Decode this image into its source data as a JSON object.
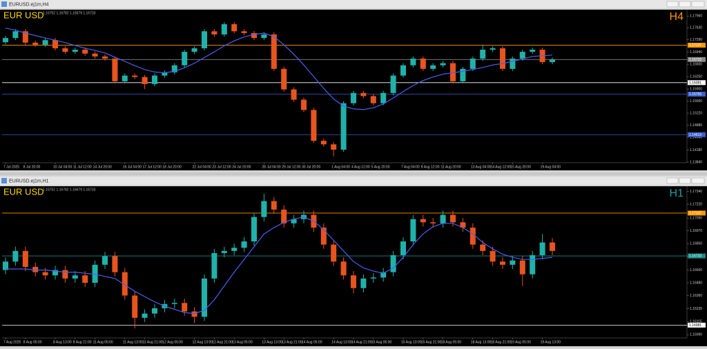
{
  "windows": [
    {
      "title": "EURUSD.ej1m,H4"
    },
    {
      "title": "EURUSD.ej1m,H1"
    }
  ],
  "chart_data": [
    {
      "type": "candlestick",
      "symbol": "EUR USD",
      "timeframe": "H4",
      "ohlc_header": "1.16752 1.16782 1.16679 1.16733",
      "up_color": "#20b2aa",
      "down_color": "#e8541e",
      "timeframe_color": "#ff9900",
      "categories": [
        "7 Jul 2025",
        null,
        "8 Jul 20:00",
        null,
        null,
        "10 Jul 04:00",
        null,
        "11 Jul 12:00",
        null,
        "14 Jul 20:00",
        null,
        null,
        "16 Jul 04:00",
        null,
        "17 Jul 12:00",
        null,
        "18 Jul 20:00",
        null,
        null,
        "22 Jul 04:00",
        null,
        "23 Jul 12:00",
        null,
        "24 Jul 20:00",
        null,
        null,
        "28 Jul 04:00",
        null,
        "29 Jul 12:00",
        null,
        "30 Jul 20:00",
        null,
        null,
        "1 Aug 04:00",
        null,
        "4 Aug 12:00",
        null,
        "5 Aug 20:00",
        null,
        null,
        "7 Aug 04:00",
        null,
        "8 Aug 12:00",
        null,
        "11 Aug 20:00",
        null,
        null,
        "13 Aug 04:00",
        null,
        "14 Aug 12:00",
        null,
        "15 Aug 20:00",
        null,
        null,
        "19 Aug 04:00",
        null
      ],
      "open": [
        1.1722,
        1.1734,
        1.1753,
        1.1721,
        1.1715,
        1.1728,
        1.1705,
        1.1695,
        1.1701,
        1.169,
        1.1682,
        1.1676,
        1.1612,
        1.1628,
        1.1624,
        1.1604,
        1.1628,
        1.1637,
        1.1657,
        1.1695,
        1.1705,
        1.1753,
        1.1744,
        1.1773,
        1.1753,
        1.1748,
        1.1734,
        1.1744,
        1.1647,
        1.1589,
        1.156,
        1.1531,
        1.1444,
        1.1434,
        1.1419,
        1.155,
        1.1579,
        1.157,
        1.155,
        1.1579,
        1.1628,
        1.1657,
        1.1676,
        1.1647,
        1.1657,
        1.1663,
        1.1612,
        1.1647,
        1.1676,
        1.1701,
        1.1705,
        1.1647,
        1.1676,
        1.1695,
        1.1701,
        1.1666
      ],
      "high": [
        1.174,
        1.1759,
        1.1759,
        1.1727,
        1.1734,
        1.1734,
        1.1711,
        1.1707,
        1.1707,
        1.1696,
        1.1688,
        1.1682,
        1.1634,
        1.1634,
        1.163,
        1.1634,
        1.1643,
        1.1663,
        1.1701,
        1.1711,
        1.1759,
        1.1759,
        1.1779,
        1.1779,
        1.1759,
        1.1754,
        1.175,
        1.175,
        1.1653,
        1.1595,
        1.1566,
        1.1537,
        1.145,
        1.144,
        1.1556,
        1.1585,
        1.1585,
        1.1576,
        1.1585,
        1.1634,
        1.1663,
        1.1682,
        1.1682,
        1.1663,
        1.1669,
        1.1669,
        1.1653,
        1.1682,
        1.1715,
        1.1711,
        1.1711,
        1.1682,
        1.1701,
        1.1707,
        1.1707,
        1.1679
      ],
      "low": [
        1.1716,
        1.1728,
        1.1715,
        1.1709,
        1.1709,
        1.1699,
        1.1689,
        1.1689,
        1.1684,
        1.1676,
        1.167,
        1.1606,
        1.1606,
        1.1618,
        1.159,
        1.1598,
        1.1622,
        1.1631,
        1.1651,
        1.1689,
        1.1699,
        1.1738,
        1.1738,
        1.1747,
        1.1742,
        1.1728,
        1.1728,
        1.1641,
        1.1583,
        1.1554,
        1.1525,
        1.1438,
        1.1428,
        1.14,
        1.1413,
        1.1544,
        1.1564,
        1.1544,
        1.1544,
        1.1573,
        1.1622,
        1.1651,
        1.1641,
        1.1641,
        1.1651,
        1.1606,
        1.1606,
        1.1641,
        1.167,
        1.1695,
        1.1641,
        1.1641,
        1.167,
        1.1689,
        1.166,
        1.166
      ],
      "close": [
        1.1734,
        1.1753,
        1.1721,
        1.1715,
        1.1728,
        1.1705,
        1.1695,
        1.1701,
        1.169,
        1.1682,
        1.1676,
        1.1612,
        1.1628,
        1.1624,
        1.1604,
        1.1628,
        1.1637,
        1.1657,
        1.1695,
        1.1705,
        1.1753,
        1.1744,
        1.1773,
        1.1753,
        1.1748,
        1.1734,
        1.1744,
        1.1647,
        1.1589,
        1.156,
        1.1531,
        1.1444,
        1.1434,
        1.1419,
        1.155,
        1.1579,
        1.157,
        1.155,
        1.1579,
        1.1628,
        1.1657,
        1.1676,
        1.1647,
        1.1657,
        1.1663,
        1.1612,
        1.1647,
        1.1676,
        1.1701,
        1.1705,
        1.1647,
        1.1676,
        1.1695,
        1.1701,
        1.1666,
        1.1673
      ],
      "series": [
        {
          "color": "#4a5ff0",
          "values": [
            1.1762,
            1.1756,
            1.1748,
            1.1741,
            1.1734,
            1.1728,
            1.1721,
            1.1713,
            1.1705,
            1.1699,
            1.1692,
            1.168,
            1.1668,
            1.1656,
            1.1645,
            1.1638,
            1.1636,
            1.164,
            1.165,
            1.1663,
            1.1679,
            1.1695,
            1.1712,
            1.1726,
            1.1737,
            1.1744,
            1.1748,
            1.1738,
            1.1715,
            1.1688,
            1.1658,
            1.1625,
            1.1592,
            1.1562,
            1.1542,
            1.1534,
            1.1532,
            1.1537,
            1.1548,
            1.1565,
            1.1583,
            1.16,
            1.1614,
            1.1624,
            1.1632,
            1.1636,
            1.164,
            1.1645,
            1.1651,
            1.1658,
            1.1662,
            1.1668,
            1.1675,
            1.1682,
            1.1684,
            1.1686
          ]
        }
      ],
      "levels": [
        {
          "value": 1.17137,
          "color": "#ff9900"
        },
        {
          "value": 1.16733,
          "color": "#888888"
        },
        {
          "value": 1.16081,
          "color": "#ffffff"
        },
        {
          "value": 1.15756,
          "color": "#3a5fd0"
        },
        {
          "value": 1.14613,
          "color": "#3a5fd0"
        }
      ],
      "ylim": [
        1.1382,
        1.1814
      ],
      "yticks": [
        {
          "value": 1.1796,
          "label": "1.17960"
        },
        {
          "value": 1.1763,
          "label": "1.17630"
        },
        {
          "value": 1.1729,
          "label": "1.17290"
        },
        {
          "value": 1.1694,
          "label": "1.16940"
        },
        {
          "value": 1.166,
          "label": "1.16600"
        },
        {
          "value": 1.1625,
          "label": "1.16250"
        },
        {
          "value": 1.159,
          "label": "1.15900"
        },
        {
          "value": 1.1556,
          "label": "1.15560"
        },
        {
          "value": 1.1522,
          "label": "1.15220"
        },
        {
          "value": 1.1488,
          "label": "1.14880"
        },
        {
          "value": 1.1454,
          "label": "1.14540"
        },
        {
          "value": 1.1418,
          "label": "1.14180"
        },
        {
          "value": 1.1384,
          "label": "1.13840"
        }
      ]
    },
    {
      "type": "candlestick",
      "symbol": "EUR USD",
      "timeframe": "H1",
      "ohlc_header": "1.16752 1.16782 1.16679 1.16733",
      "up_color": "#20b2aa",
      "down_color": "#e8541e",
      "timeframe_color": "#20a0a0",
      "categories": [
        "7 Aug 2025",
        null,
        "8 Aug 05:00",
        null,
        null,
        "8 Aug 13:00",
        null,
        "8 Aug 21:00",
        null,
        "11 Aug 05:00",
        null,
        null,
        "11 Aug 13:00",
        null,
        "11 Aug 21:00",
        null,
        "12 Aug 05:00",
        null,
        null,
        "12 Aug 13:00",
        null,
        "12 Aug 21:00",
        null,
        "13 Aug 05:00",
        null,
        null,
        "13 Aug 13:00",
        null,
        "13 Aug 21:00",
        null,
        "14 Aug 05:00",
        null,
        null,
        "14 Aug 13:00",
        null,
        "14 Aug 21:00",
        null,
        "15 Aug 05:00",
        null,
        null,
        "15 Aug 13:00",
        null,
        "15 Aug 21:00",
        null,
        "18 Aug 05:00",
        null,
        null,
        "18 Aug 13:00",
        null,
        "18 Aug 21:00",
        null,
        "19 Aug 05:00",
        null,
        null,
        "19 Aug 13:00",
        null
      ],
      "open": [
        1.166,
        1.1668,
        1.1678,
        1.1663,
        1.1658,
        1.1655,
        1.166,
        1.1652,
        1.1655,
        1.1648,
        1.1665,
        1.1673,
        1.1658,
        1.1636,
        1.1615,
        1.1619,
        1.1624,
        1.1628,
        1.1629,
        1.1621,
        1.1616,
        1.1652,
        1.1676,
        1.1678,
        1.1681,
        1.1687,
        1.171,
        1.1725,
        1.1717,
        1.1704,
        1.1708,
        1.1712,
        1.17,
        1.1684,
        1.1668,
        1.1655,
        1.1643,
        1.1652,
        1.1653,
        1.1658,
        1.1674,
        1.1687,
        1.1708,
        1.1705,
        1.1704,
        1.1712,
        1.1705,
        1.17,
        1.1684,
        1.1678,
        1.1668,
        1.1665,
        1.1669,
        1.1656,
        1.1674,
        1.1686
      ],
      "high": [
        1.1672,
        1.1682,
        1.1682,
        1.1667,
        1.1662,
        1.1664,
        1.1664,
        1.1659,
        1.1659,
        1.1669,
        1.1677,
        1.1677,
        1.1662,
        1.164,
        1.1623,
        1.1628,
        1.1632,
        1.1633,
        1.1633,
        1.1625,
        1.1656,
        1.168,
        1.1682,
        1.1685,
        1.1691,
        1.1714,
        1.1732,
        1.1729,
        1.1721,
        1.1712,
        1.1716,
        1.1716,
        1.1704,
        1.1688,
        1.1672,
        1.1659,
        1.1656,
        1.1657,
        1.1662,
        1.1678,
        1.1691,
        1.1712,
        1.1712,
        1.1709,
        1.1716,
        1.1716,
        1.1709,
        1.1704,
        1.1688,
        1.1682,
        1.1672,
        1.1673,
        1.1673,
        1.1678,
        1.1694,
        1.169
      ],
      "low": [
        1.1656,
        1.1664,
        1.1659,
        1.1654,
        1.1651,
        1.1651,
        1.1648,
        1.1648,
        1.1644,
        1.1644,
        1.1661,
        1.1654,
        1.1632,
        1.1605,
        1.1611,
        1.1615,
        1.162,
        1.1624,
        1.1617,
        1.161,
        1.1612,
        1.1648,
        1.1672,
        1.1674,
        1.1677,
        1.1683,
        1.1706,
        1.1713,
        1.17,
        1.17,
        1.1704,
        1.1696,
        1.168,
        1.1664,
        1.1651,
        1.1638,
        1.1639,
        1.1648,
        1.1649,
        1.1654,
        1.167,
        1.1683,
        1.1701,
        1.17,
        1.17,
        1.1701,
        1.1696,
        1.168,
        1.1674,
        1.1664,
        1.1661,
        1.1661,
        1.1645,
        1.1652,
        1.167,
        1.1674
      ],
      "close": [
        1.1668,
        1.1678,
        1.1663,
        1.1658,
        1.1655,
        1.166,
        1.1652,
        1.1655,
        1.1648,
        1.1665,
        1.1673,
        1.1658,
        1.1636,
        1.1615,
        1.1619,
        1.1624,
        1.1628,
        1.1629,
        1.1621,
        1.1616,
        1.1652,
        1.1676,
        1.1678,
        1.1681,
        1.1687,
        1.171,
        1.1725,
        1.1717,
        1.1704,
        1.1708,
        1.1712,
        1.17,
        1.1684,
        1.1668,
        1.1655,
        1.1643,
        1.1652,
        1.1653,
        1.1658,
        1.1674,
        1.1687,
        1.1708,
        1.1705,
        1.1704,
        1.1712,
        1.1705,
        1.17,
        1.1684,
        1.1678,
        1.1668,
        1.1665,
        1.1669,
        1.1656,
        1.1674,
        1.1686,
        1.1678
      ],
      "series": [
        {
          "color": "#4a5ff0",
          "values": [
            1.1661,
            1.1661,
            1.1661,
            1.166,
            1.166,
            1.1659,
            1.1658,
            1.1658,
            1.1657,
            1.1656,
            1.1654,
            1.1652,
            1.1646,
            1.164,
            1.1635,
            1.163,
            1.1626,
            1.1623,
            1.162,
            1.1619,
            1.1622,
            1.1632,
            1.1645,
            1.1658,
            1.167,
            1.1682,
            1.1694,
            1.17,
            1.1705,
            1.1708,
            1.171,
            1.1706,
            1.1698,
            1.1688,
            1.1678,
            1.1668,
            1.1662,
            1.1659,
            1.1657,
            1.1662,
            1.1672,
            1.1684,
            1.1694,
            1.1701,
            1.1704,
            1.1704,
            1.17,
            1.1694,
            1.1686,
            1.168,
            1.1675,
            1.1672,
            1.167,
            1.167,
            1.1671,
            1.1672
          ]
        }
      ],
      "levels": [
        {
          "value": 1.17137,
          "color": "#ff9900"
        },
        {
          "value": 1.16733,
          "color": "#1a8a8a"
        },
        {
          "value": 1.16081,
          "color": "#ffffff"
        }
      ],
      "ylim": [
        1.1596,
        1.1739
      ],
      "yticks": [
        {
          "value": 1.1734,
          "label": "1.17340"
        },
        {
          "value": 1.1722,
          "label": "1.17220"
        },
        {
          "value": 1.1709,
          "label": "1.17090"
        },
        {
          "value": 1.1697,
          "label": "1.16970"
        },
        {
          "value": 1.1685,
          "label": "1.16850"
        },
        {
          "value": 1.16725,
          "label": "1.16725"
        },
        {
          "value": 1.166,
          "label": "1.16600"
        },
        {
          "value": 1.1648,
          "label": "1.16480"
        },
        {
          "value": 1.1636,
          "label": "1.16360"
        },
        {
          "value": 1.16235,
          "label": "1.16235"
        },
        {
          "value": 1.16115,
          "label": "1.16115"
        },
        {
          "value": 1.1599,
          "label": "1.15990"
        }
      ]
    }
  ]
}
